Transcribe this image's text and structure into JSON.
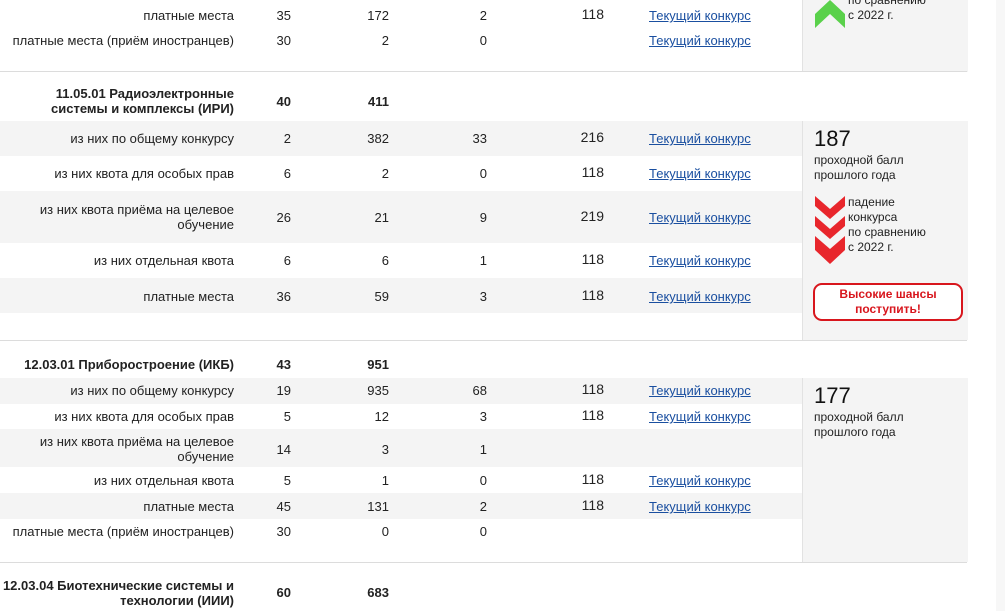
{
  "link_label": "Текущий конкурс",
  "top_partial": {
    "note": [
      "по сравнению",
      "с 2022 г."
    ],
    "rows": [
      {
        "label": "платные места",
        "v1": "35",
        "v2": "172",
        "v3": "2",
        "v4": "118",
        "link": true
      },
      {
        "label": "платные места (приём иностранцев)",
        "v1": "30",
        "v2": "2",
        "v3": "0",
        "v4": "",
        "link": true
      }
    ]
  },
  "program_iri": {
    "title_lines": [
      "11.05.01 Радиоэлектронные",
      "системы и комплексы (ИРИ)"
    ],
    "total": "40",
    "applications": "411",
    "rows": [
      {
        "label": [
          "из них по общему конкурсу"
        ],
        "v1": "2",
        "v2": "382",
        "v3": "33",
        "v4": "216",
        "link": true
      },
      {
        "label": [
          "из них квота для особых прав"
        ],
        "v1": "6",
        "v2": "2",
        "v3": "0",
        "v4": "118",
        "link": true
      },
      {
        "label": [
          "из них квота приёма на целевое",
          "обучение"
        ],
        "v1": "26",
        "v2": "21",
        "v3": "9",
        "v4": "219",
        "link": true
      },
      {
        "label": [
          "из них отдельная квота"
        ],
        "v1": "6",
        "v2": "6",
        "v3": "1",
        "v4": "118",
        "link": true
      },
      {
        "label": [
          "платные места"
        ],
        "v1": "36",
        "v2": "59",
        "v3": "3",
        "v4": "118",
        "link": true
      }
    ],
    "side": {
      "score": "187",
      "score_caption": [
        "проходной балл",
        "прошлого года"
      ],
      "trend": [
        "падение",
        "конкурса",
        "по сравнению",
        "с 2022 г."
      ],
      "badge": [
        "Высокие шансы",
        "поступить!"
      ]
    }
  },
  "program_ikb": {
    "title": "12.03.01 Приборостроение (ИКБ)",
    "total": "43",
    "applications": "951",
    "rows": [
      {
        "label": [
          "из них по общему конкурсу"
        ],
        "v1": "19",
        "v2": "935",
        "v3": "68",
        "v4": "118",
        "link": true
      },
      {
        "label": [
          "из них квота для особых прав"
        ],
        "v1": "5",
        "v2": "12",
        "v3": "3",
        "v4": "118",
        "link": true
      },
      {
        "label": [
          "из них квота приёма на целевое",
          "обучение"
        ],
        "v1": "14",
        "v2": "3",
        "v3": "1",
        "v4": "",
        "link": false
      },
      {
        "label": [
          "из них отдельная квота"
        ],
        "v1": "5",
        "v2": "1",
        "v3": "0",
        "v4": "118",
        "link": true
      },
      {
        "label": [
          "платные места"
        ],
        "v1": "45",
        "v2": "131",
        "v3": "2",
        "v4": "118",
        "link": true
      },
      {
        "label": [
          "платные места (приём иностранцев)"
        ],
        "v1": "30",
        "v2": "0",
        "v3": "0",
        "v4": "",
        "link": false
      }
    ],
    "side": {
      "score": "177",
      "score_caption": [
        "проходной балл",
        "прошлого года"
      ]
    }
  },
  "program_iii": {
    "title_lines": [
      "12.03.04 Биотехнические системы и",
      "технологии (ИИИ)"
    ],
    "total": "60",
    "applications": "683"
  },
  "colors": {
    "link": "#1a4fa0",
    "up_arrow": "#5ad14b",
    "down_arrow": "#e8262c",
    "badge": "#d8161d"
  }
}
